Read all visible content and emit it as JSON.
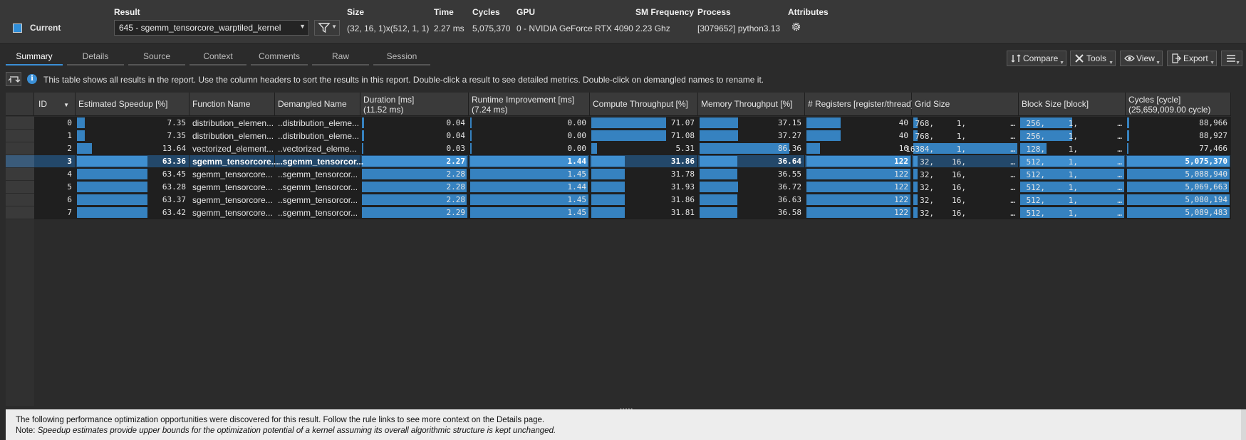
{
  "header": {
    "current_label": "Current",
    "swatch_color": "#2f8ed8",
    "result_label": "Result",
    "result_value": "645 - sgemm_tensorcore_warptiled_kernel",
    "size_label": "Size",
    "size_value": "(32, 16, 1)x(512, 1, 1)",
    "time_label": "Time",
    "time_value": "2.27 ms",
    "cycles_label": "Cycles",
    "cycles_value": "5,075,370",
    "gpu_label": "GPU",
    "gpu_value": "0 - NVIDIA GeForce RTX 4090",
    "smfreq_label": "SM Frequency",
    "smfreq_value": "2.23 Ghz",
    "process_label": "Process",
    "process_value": "[3079652] python3.13",
    "attributes_label": "Attributes",
    "attributes_icon": "gear-icon"
  },
  "tabs": [
    "Summary",
    "Details",
    "Source",
    "Context",
    "Comments",
    "Raw",
    "Session"
  ],
  "toolbar": {
    "compare": "Compare",
    "tools": "Tools",
    "view": "View",
    "export": "Export"
  },
  "info": {
    "text": "This table shows all results in the report. Use the column headers to sort the results in this report. Double-click a result to see detailed metrics. Double-click on demangled names to rename it."
  },
  "table": {
    "columns": {
      "id": "ID",
      "speedup": "Estimated Speedup [%]",
      "function": "Function Name",
      "demangled": "Demangled Name",
      "duration": "Duration [ms]",
      "duration_sub": "(11.52 ms)",
      "runtime": "Runtime Improvement [ms]",
      "runtime_sub": "(7.24 ms)",
      "compute": "Compute Throughput [%]",
      "memory": "Memory Throughput [%]",
      "registers": "# Registers [register/thread]",
      "grid": "Grid Size",
      "block": "Block Size [block]",
      "cycles": "Cycles [cycle]",
      "cycles_sub": "(25,659,009.00 cycle)"
    },
    "selected_row": 3,
    "rows": [
      {
        "id": "0",
        "speedup": "7.35",
        "speedup_v": 7.35,
        "function": "distribution_elemen...",
        "demangled": "..distribution_eleme...",
        "duration": "0.04",
        "duration_v": 0.04,
        "runtime": "0.00",
        "runtime_v": 0.0,
        "compute": "71.07",
        "compute_v": 71.07,
        "memory": "37.15",
        "memory_v": 37.15,
        "registers": "40",
        "registers_v": 40,
        "grid": [
          "768,",
          "1,",
          "..."
        ],
        "block": [
          "256,",
          "1,",
          "..."
        ],
        "cycles": "88,966",
        "cycles_v": 88966
      },
      {
        "id": "1",
        "speedup": "7.35",
        "speedup_v": 7.35,
        "function": "distribution_elemen...",
        "demangled": "..distribution_eleme...",
        "duration": "0.04",
        "duration_v": 0.04,
        "runtime": "0.00",
        "runtime_v": 0.0,
        "compute": "71.08",
        "compute_v": 71.08,
        "memory": "37.27",
        "memory_v": 37.27,
        "registers": "40",
        "registers_v": 40,
        "grid": [
          "768,",
          "1,",
          "..."
        ],
        "block": [
          "256,",
          "1,",
          "..."
        ],
        "cycles": "88,927",
        "cycles_v": 88927
      },
      {
        "id": "2",
        "speedup": "13.64",
        "speedup_v": 13.64,
        "function": "vectorized_element...",
        "demangled": "..vectorized_eleme...",
        "duration": "0.03",
        "duration_v": 0.03,
        "runtime": "0.00",
        "runtime_v": 0.0,
        "compute": "5.31",
        "compute_v": 5.31,
        "memory": "86.36",
        "memory_v": 86.36,
        "registers": "16",
        "registers_v": 16,
        "grid": [
          "16384,",
          "1,",
          "..."
        ],
        "block": [
          "128,",
          "1,",
          "..."
        ],
        "cycles": "77,466",
        "cycles_v": 77466
      },
      {
        "id": "3",
        "speedup": "63.36",
        "speedup_v": 63.36,
        "function": "sgemm_tensorcore...",
        "demangled": "..sgemm_tensorcor...",
        "duration": "2.27",
        "duration_v": 2.27,
        "runtime": "1.44",
        "runtime_v": 1.44,
        "compute": "31.86",
        "compute_v": 31.86,
        "memory": "36.64",
        "memory_v": 36.64,
        "registers": "122",
        "registers_v": 122,
        "grid": [
          "32,",
          "16,",
          "..."
        ],
        "block": [
          "512,",
          "1,",
          "..."
        ],
        "cycles": "5,075,370",
        "cycles_v": 5075370
      },
      {
        "id": "4",
        "speedup": "63.45",
        "speedup_v": 63.45,
        "function": "sgemm_tensorcore...",
        "demangled": "..sgemm_tensorcor...",
        "duration": "2.28",
        "duration_v": 2.28,
        "runtime": "1.45",
        "runtime_v": 1.45,
        "compute": "31.78",
        "compute_v": 31.78,
        "memory": "36.55",
        "memory_v": 36.55,
        "registers": "122",
        "registers_v": 122,
        "grid": [
          "32,",
          "16,",
          "..."
        ],
        "block": [
          "512,",
          "1,",
          "..."
        ],
        "cycles": "5,088,940",
        "cycles_v": 5088940
      },
      {
        "id": "5",
        "speedup": "63.28",
        "speedup_v": 63.28,
        "function": "sgemm_tensorcore...",
        "demangled": "..sgemm_tensorcor...",
        "duration": "2.28",
        "duration_v": 2.28,
        "runtime": "1.44",
        "runtime_v": 1.44,
        "compute": "31.93",
        "compute_v": 31.93,
        "memory": "36.72",
        "memory_v": 36.72,
        "registers": "122",
        "registers_v": 122,
        "grid": [
          "32,",
          "16,",
          "..."
        ],
        "block": [
          "512,",
          "1,",
          "..."
        ],
        "cycles": "5,069,663",
        "cycles_v": 5069663
      },
      {
        "id": "6",
        "speedup": "63.37",
        "speedup_v": 63.37,
        "function": "sgemm_tensorcore...",
        "demangled": "..sgemm_tensorcor...",
        "duration": "2.28",
        "duration_v": 2.28,
        "runtime": "1.45",
        "runtime_v": 1.45,
        "compute": "31.86",
        "compute_v": 31.86,
        "memory": "36.63",
        "memory_v": 36.63,
        "registers": "122",
        "registers_v": 122,
        "grid": [
          "32,",
          "16,",
          "..."
        ],
        "block": [
          "512,",
          "1,",
          "..."
        ],
        "cycles": "5,080,194",
        "cycles_v": 5080194
      },
      {
        "id": "7",
        "speedup": "63.42",
        "speedup_v": 63.42,
        "function": "sgemm_tensorcore...",
        "demangled": "..sgemm_tensorcor...",
        "duration": "2.29",
        "duration_v": 2.29,
        "runtime": "1.45",
        "runtime_v": 1.45,
        "compute": "31.81",
        "compute_v": 31.81,
        "memory": "36.58",
        "memory_v": 36.58,
        "registers": "122",
        "registers_v": 122,
        "grid": [
          "32,",
          "16,",
          "..."
        ],
        "block": [
          "512,",
          "1,",
          "..."
        ],
        "cycles": "5,089,483",
        "cycles_v": 5089483
      }
    ]
  },
  "bottom": {
    "line1": "The following performance optimization opportunities were discovered for this result. Follow the rule links to see more context on the Details page.",
    "note_label": "Note:",
    "note_text": "Speedup estimates provide upper bounds for the optimization potential of a kernel assuming its overall algorithmic structure is kept unchanged."
  },
  "colors": {
    "accent": "#3a8fd6",
    "bar": "#3682c0",
    "selected_row": "#23486a"
  }
}
